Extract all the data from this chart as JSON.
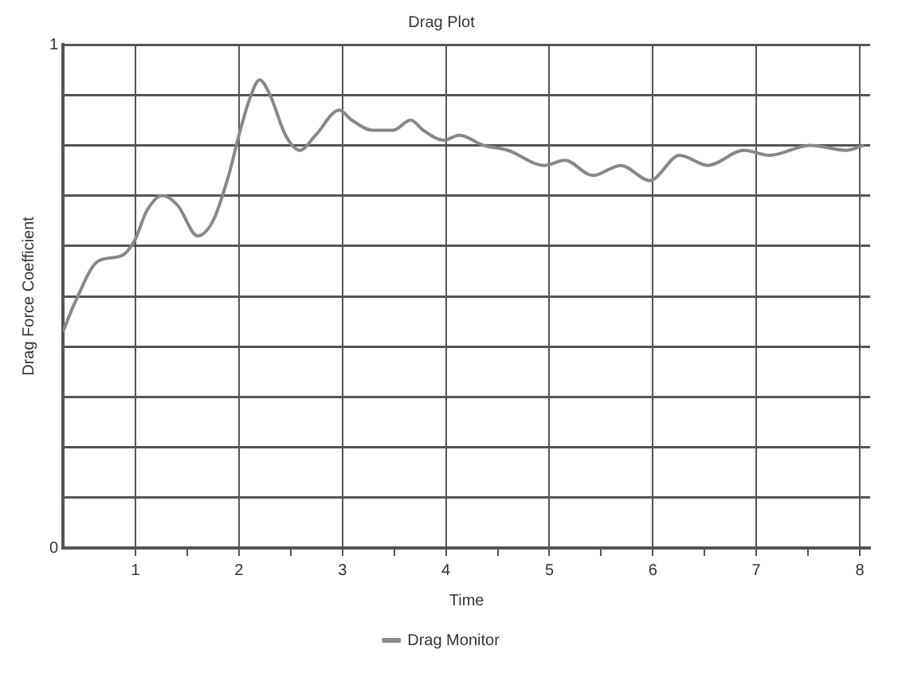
{
  "chart_data": {
    "type": "line",
    "title": "Drag Plot",
    "xlabel": "Time",
    "ylabel": "Drag Force Coefficient",
    "x": [
      0.3,
      0.42,
      0.64,
      0.86,
      0.99,
      1.11,
      1.26,
      1.41,
      1.6,
      1.75,
      1.9,
      2.0,
      2.1,
      2.2,
      2.3,
      2.45,
      2.59,
      2.74,
      2.97,
      3.09,
      3.29,
      3.49,
      3.66,
      3.78,
      3.98,
      4.13,
      4.36,
      4.6,
      4.95,
      5.15,
      5.42,
      5.69,
      5.97,
      6.26,
      6.53,
      6.88,
      7.13,
      7.52,
      7.87,
      8.04
    ],
    "series": [
      {
        "name": "Drag Monitor",
        "color": "#888888",
        "values": [
          0.43,
          0.49,
          0.57,
          0.58,
          0.61,
          0.67,
          0.7,
          0.68,
          0.62,
          0.65,
          0.74,
          0.82,
          0.89,
          0.93,
          0.9,
          0.82,
          0.79,
          0.82,
          0.87,
          0.85,
          0.83,
          0.83,
          0.85,
          0.83,
          0.81,
          0.82,
          0.8,
          0.79,
          0.76,
          0.77,
          0.74,
          0.76,
          0.73,
          0.78,
          0.76,
          0.79,
          0.78,
          0.8,
          0.79,
          0.8
        ]
      }
    ],
    "xlim": [
      0.3,
      8.1
    ],
    "xticks": [
      1,
      {
        "value": 1.5,
        "label": null
      },
      2,
      {
        "value": 2.5,
        "label": null
      },
      3,
      {
        "value": 3.5,
        "label": null
      },
      4,
      {
        "value": 4.5,
        "label": null
      },
      5,
      {
        "value": 5.5,
        "label": null
      },
      6,
      {
        "value": 6.5,
        "label": null
      },
      7,
      {
        "value": 7.5,
        "label": null
      },
      8
    ],
    "ylim": [
      0,
      1
    ],
    "yticks": [
      0,
      {
        "value": 0.1,
        "label": null
      },
      {
        "value": 0.2,
        "label": null
      },
      {
        "value": 0.3,
        "label": null
      },
      {
        "value": 0.4,
        "label": null
      },
      {
        "value": 0.5,
        "label": null
      },
      {
        "value": 0.6,
        "label": null
      },
      {
        "value": 0.7,
        "label": null
      },
      {
        "value": 0.8,
        "label": null
      },
      {
        "value": 0.9,
        "label": null
      },
      1
    ],
    "grid": true,
    "legend": "bottom",
    "marker": "none",
    "line_style": "solid"
  }
}
